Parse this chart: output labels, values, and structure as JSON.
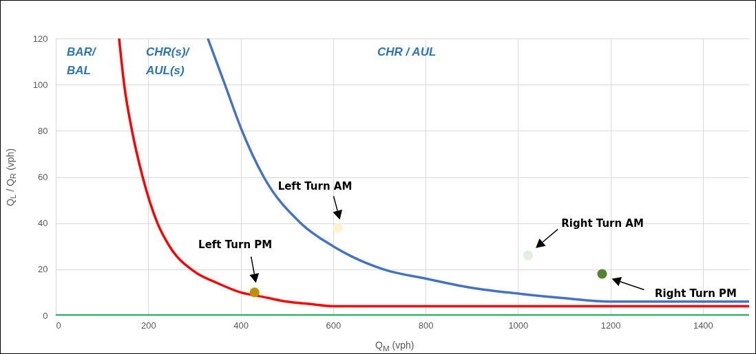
{
  "chart_data": {
    "type": "line",
    "xlabel": "Q$_{M}$ (vph)",
    "ylabel": "Q$_{L}$ / Q$_{R}$ (vph)",
    "xlim": [
      0,
      1500
    ],
    "ylim": [
      0,
      120
    ],
    "xticks": [
      0,
      200,
      400,
      600,
      800,
      1000,
      1200,
      1400
    ],
    "yticks": [
      0,
      20,
      40,
      60,
      80,
      100,
      120
    ],
    "grid": true,
    "series": [
      {
        "color": "#ff0000",
        "x": [
          137,
          148,
          165,
          188,
          220,
          246,
          300,
          350,
          400,
          450,
          500,
          550,
          600,
          800,
          1000,
          1200,
          1500
        ],
        "values": [
          120,
          100,
          80,
          60,
          40,
          30,
          19,
          14,
          10,
          8,
          6,
          5,
          4,
          4,
          4,
          4,
          4
        ]
      },
      {
        "color": "#4472c4",
        "x": [
          329,
          366,
          403,
          450,
          530,
          600,
          709,
          800,
          900,
          1000,
          1100,
          1200,
          1230,
          1500
        ],
        "values": [
          120,
          100,
          80,
          60,
          40,
          30,
          20,
          16,
          12,
          9.5,
          7.5,
          6,
          6,
          6
        ]
      },
      {
        "color": "#00b050",
        "x": [
          0,
          1500
        ],
        "values": [
          0,
          0
        ]
      },
      {
        "type": "scatter",
        "x": [
          430,
          610,
          1022,
          1182
        ],
        "values": [
          10,
          38,
          26,
          18
        ],
        "colors": [
          "#bf9000",
          "#fff2cc",
          "#e2efda",
          "#548235"
        ]
      }
    ],
    "annotations": [
      "Left Turn PM",
      "Left Turn AM",
      "Right Turn AM",
      "Right Turn PM",
      "BAR/\nBAL",
      "CHR(s)/\nAUL(s)",
      "CHR / AUL"
    ]
  }
}
